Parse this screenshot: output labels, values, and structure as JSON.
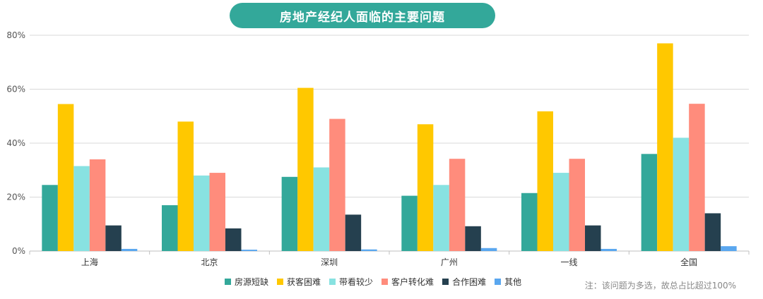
{
  "chart_data": {
    "type": "bar",
    "title": "房地产经纪人面临的主要问题",
    "categories": [
      "上海",
      "北京",
      "深圳",
      "广州",
      "一线",
      "全国"
    ],
    "series": [
      {
        "name": "房源短缺",
        "color": "#33a89a",
        "values": [
          24.5,
          17.0,
          27.5,
          20.5,
          21.5,
          36.0
        ]
      },
      {
        "name": "获客困难",
        "color": "#ffc800",
        "values": [
          54.5,
          48.0,
          60.5,
          47.0,
          51.8,
          77.0
        ]
      },
      {
        "name": "带看较少",
        "color": "#88e2e1",
        "values": [
          31.5,
          28.0,
          31.0,
          24.5,
          29.0,
          42.0
        ]
      },
      {
        "name": "客户转化难",
        "color": "#ff8c7c",
        "values": [
          34.0,
          29.0,
          49.0,
          34.2,
          34.2,
          54.6
        ]
      },
      {
        "name": "合作困难",
        "color": "#25404f",
        "values": [
          9.5,
          8.4,
          13.5,
          9.2,
          9.5,
          14.0
        ]
      },
      {
        "name": "其他",
        "color": "#5aa7ef",
        "values": [
          0.8,
          0.5,
          0.6,
          1.1,
          0.8,
          1.8
        ]
      }
    ],
    "ylim": [
      0,
      80
    ],
    "yticks": [
      0,
      20,
      40,
      60,
      80
    ],
    "ytick_labels": [
      "0%",
      "20%",
      "40%",
      "60%",
      "80%"
    ],
    "grid": true,
    "legend_position": "bottom",
    "note": "注：该问题为多选，故总占比超过100%"
  }
}
